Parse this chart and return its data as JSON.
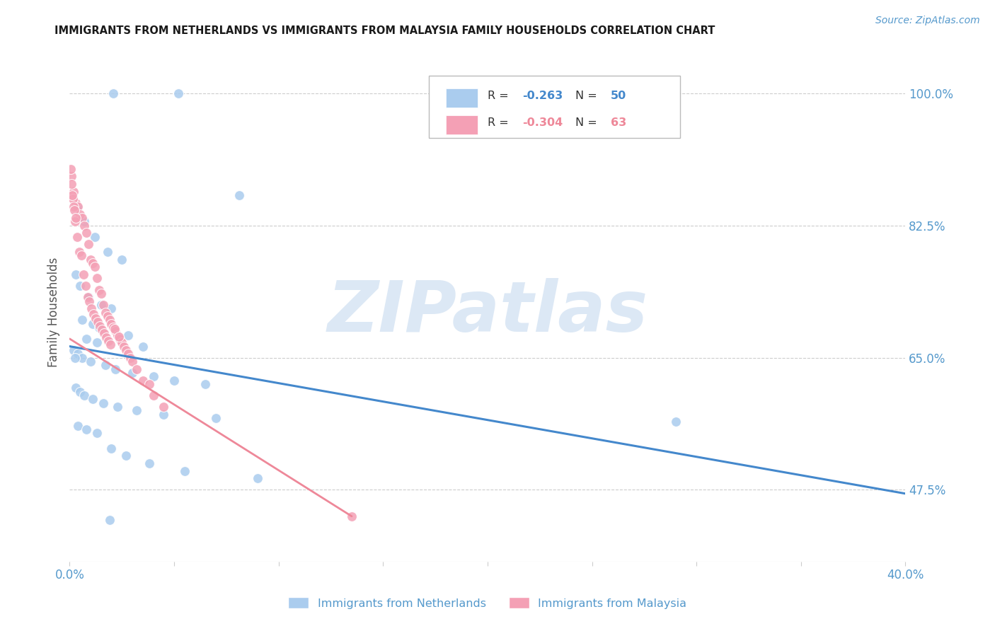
{
  "title": "IMMIGRANTS FROM NETHERLANDS VS IMMIGRANTS FROM MALAYSIA FAMILY HOUSEHOLDS CORRELATION CHART",
  "source": "Source: ZipAtlas.com",
  "ylabel": "Family Households",
  "right_yticks": [
    100.0,
    82.5,
    65.0,
    47.5
  ],
  "xlim": [
    0.0,
    40.0
  ],
  "ylim": [
    38.0,
    104.0
  ],
  "netherlands_R": -0.263,
  "netherlands_N": 50,
  "malaysia_R": -0.304,
  "malaysia_N": 63,
  "netherlands_color": "#aaccee",
  "malaysia_color": "#f4a0b5",
  "netherlands_line_color": "#4488cc",
  "malaysia_line_color": "#ee8899",
  "watermark": "ZIPatlas",
  "watermark_color": "#dce8f5",
  "nl_x": [
    2.1,
    5.2,
    8.1,
    0.35,
    0.7,
    1.2,
    1.8,
    2.5,
    0.3,
    0.5,
    0.9,
    1.5,
    2.0,
    0.6,
    1.1,
    1.4,
    2.8,
    0.8,
    1.3,
    3.5,
    0.2,
    0.4,
    0.6,
    1.0,
    1.7,
    2.2,
    3.0,
    4.0,
    5.0,
    0.3,
    0.5,
    0.7,
    1.1,
    1.6,
    2.3,
    3.2,
    4.5,
    7.0,
    29.0,
    0.4,
    0.8,
    1.3,
    2.0,
    2.7,
    3.8,
    5.5,
    9.0,
    6.5,
    1.9,
    0.25
  ],
  "nl_y": [
    100.0,
    100.0,
    86.5,
    85.0,
    83.0,
    81.0,
    79.0,
    78.0,
    76.0,
    74.5,
    73.0,
    72.0,
    71.5,
    70.0,
    69.5,
    69.0,
    68.0,
    67.5,
    67.0,
    66.5,
    66.0,
    65.5,
    65.0,
    64.5,
    64.0,
    63.5,
    63.0,
    62.5,
    62.0,
    61.0,
    60.5,
    60.0,
    59.5,
    59.0,
    58.5,
    58.0,
    57.5,
    57.0,
    56.5,
    56.0,
    55.5,
    55.0,
    53.0,
    52.0,
    51.0,
    50.0,
    49.0,
    61.5,
    43.5,
    65.0
  ],
  "my_x": [
    0.1,
    0.2,
    0.3,
    0.4,
    0.5,
    0.6,
    0.7,
    0.8,
    0.9,
    1.0,
    1.1,
    1.2,
    1.3,
    1.4,
    1.5,
    1.6,
    1.7,
    1.8,
    1.9,
    2.0,
    2.1,
    2.2,
    2.3,
    2.4,
    2.5,
    2.6,
    2.7,
    2.8,
    2.9,
    3.0,
    3.2,
    3.5,
    3.8,
    4.0,
    4.5,
    0.15,
    0.25,
    0.35,
    0.45,
    0.55,
    0.65,
    0.75,
    0.85,
    0.95,
    1.05,
    1.15,
    1.25,
    1.35,
    1.45,
    1.55,
    1.65,
    1.75,
    1.85,
    1.95,
    0.08,
    0.12,
    0.18,
    0.22,
    0.28,
    2.15,
    2.35,
    0.05,
    13.5
  ],
  "my_y": [
    89.0,
    87.0,
    85.5,
    85.0,
    84.0,
    83.5,
    82.5,
    81.5,
    80.0,
    78.0,
    77.5,
    77.0,
    75.5,
    74.0,
    73.5,
    72.0,
    71.0,
    70.5,
    70.0,
    69.5,
    69.0,
    68.5,
    68.0,
    67.5,
    67.0,
    66.5,
    66.0,
    65.5,
    65.0,
    64.5,
    63.5,
    62.0,
    61.5,
    60.0,
    58.5,
    86.0,
    83.0,
    81.0,
    79.0,
    78.5,
    76.0,
    74.5,
    73.0,
    72.5,
    71.5,
    70.8,
    70.2,
    69.7,
    69.2,
    68.7,
    68.2,
    67.7,
    67.2,
    66.7,
    88.0,
    86.5,
    85.0,
    84.5,
    83.5,
    68.8,
    67.8,
    90.0,
    44.0
  ],
  "nl_trend_x": [
    0.0,
    40.0
  ],
  "nl_trend_y": [
    66.5,
    47.0
  ],
  "my_trend_x": [
    0.0,
    13.5
  ],
  "my_trend_y": [
    67.5,
    44.0
  ],
  "x_tick_positions": [
    0.0,
    5.0,
    10.0,
    15.0,
    20.0,
    25.0,
    30.0,
    35.0,
    40.0
  ]
}
